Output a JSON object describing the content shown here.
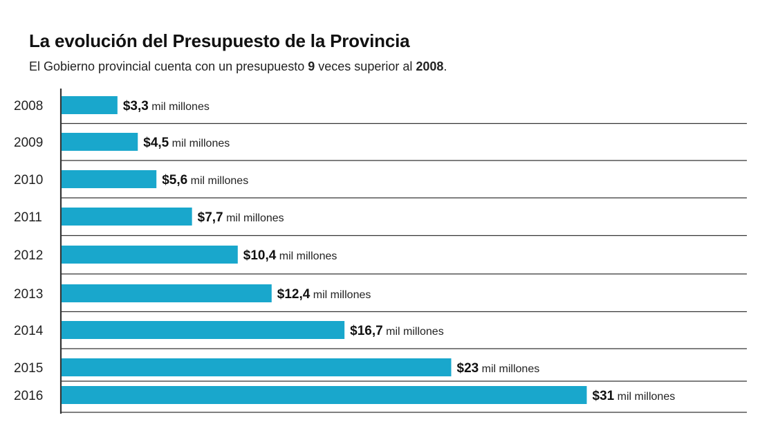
{
  "title": "La evolución del Presupuesto de la Provincia",
  "subtitle": {
    "prefix": "El Gobierno provincial cuenta con un presupuesto ",
    "highlight1": "9",
    "middle": " veces superior al ",
    "highlight2": "2008",
    "suffix": "."
  },
  "colors": {
    "bar": "#19a7cc",
    "axis": "#333333"
  },
  "chart_data": {
    "type": "bar",
    "orientation": "horizontal",
    "categories": [
      "2008",
      "2009",
      "2010",
      "2011",
      "2012",
      "2013",
      "2014",
      "2015",
      "2016"
    ],
    "values": [
      3.3,
      4.5,
      5.6,
      7.7,
      10.4,
      12.4,
      16.7,
      23,
      31
    ],
    "value_labels": [
      "$3,3",
      "$4,5",
      "$5,6",
      "$7,7",
      "$10,4",
      "$12,4",
      "$16,7",
      "$23",
      "$31"
    ],
    "value_unit": "mil millones",
    "grid": false
  }
}
